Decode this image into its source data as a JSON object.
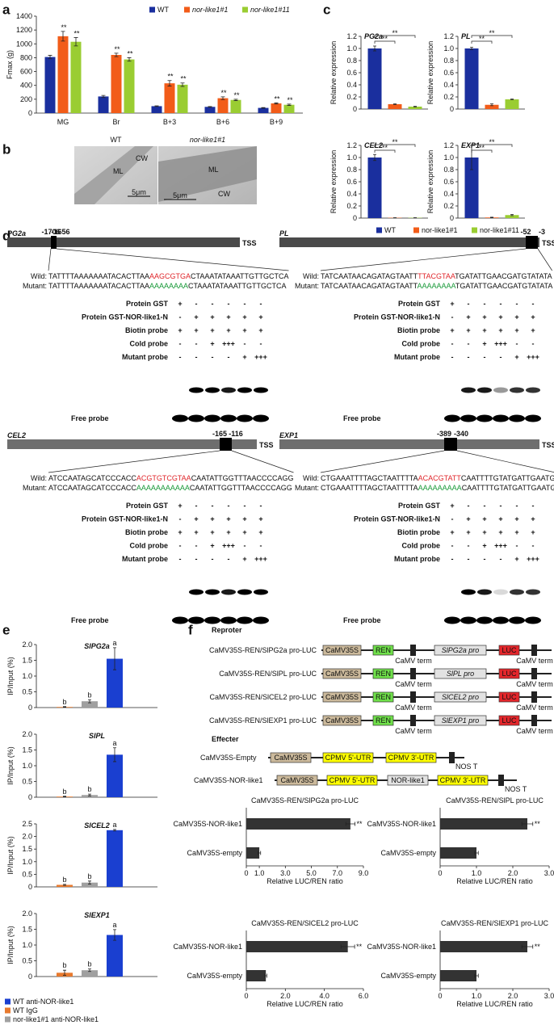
{
  "chart_data": [
    {
      "panel": "a",
      "type": "bar",
      "y_label": "Fmax (g)",
      "categories": [
        "MG",
        "Br",
        "B+3",
        "B+6",
        "B+9"
      ],
      "series": [
        {
          "name": "WT",
          "color": "#1a2f9e",
          "values": [
            810,
            240,
            100,
            90,
            75
          ],
          "errors": [
            25,
            15,
            5,
            5,
            5
          ]
        },
        {
          "name": "nor-like1#1",
          "color": "#f25c19",
          "values": [
            1110,
            840,
            430,
            215,
            140
          ],
          "errors": [
            70,
            25,
            40,
            20,
            8
          ],
          "significance": [
            "**",
            "**",
            "**",
            "**",
            "**"
          ]
        },
        {
          "name": "nor-like1#11",
          "color": "#9acd32",
          "values": [
            1030,
            775,
            410,
            190,
            120
          ],
          "errors": [
            60,
            25,
            25,
            10,
            10
          ],
          "significance": [
            "**",
            "**",
            "**",
            "**",
            "**"
          ]
        }
      ],
      "ylim": [
        0,
        1400
      ],
      "yticks": [
        0,
        200,
        400,
        600,
        800,
        1000,
        1200,
        1400
      ]
    },
    {
      "panel": "c",
      "type": "bar-panels",
      "y_label": "Relative expression",
      "ylim": [
        0,
        1.2
      ],
      "yticks": [
        0,
        0.2,
        0.4,
        0.6,
        0.8,
        {
          "value": 1,
          "label": "1.0"
        },
        1.2
      ],
      "series": [
        {
          "name": "WT",
          "color": "#1a2f9e"
        },
        {
          "name": "nor-like1#1",
          "color": "#f25c19"
        },
        {
          "name": "nor-like1#11",
          "color": "#9acd32"
        }
      ],
      "panels": [
        {
          "title": "PG2a",
          "values": [
            1.0,
            0.08,
            0.04
          ],
          "errors": [
            0.04,
            0.005,
            0.005
          ],
          "significance": [
            "**",
            "**"
          ]
        },
        {
          "title": "PL",
          "values": [
            1.0,
            0.07,
            0.16
          ],
          "errors": [
            0.02,
            0.015,
            0.005
          ],
          "significance": [
            "**",
            "**"
          ]
        },
        {
          "title": "CEL2",
          "values": [
            1.0,
            0.005,
            0.005
          ],
          "errors": [
            0.05,
            0.002,
            0.002
          ],
          "significance": [
            "**",
            "**"
          ]
        },
        {
          "title": "EXP1",
          "values": [
            1.0,
            0.01,
            0.05
          ],
          "errors": [
            0.2,
            0.005,
            0.01
          ],
          "significance": [
            "**",
            "**"
          ]
        }
      ]
    },
    {
      "panel": "e",
      "type": "bar-panels",
      "y_label": "IP/Input (%)",
      "series": [
        {
          "name": "WT anti-NOR-like1",
          "color": "#1a3fd0"
        },
        {
          "name": "WT IgG",
          "color": "#e87a2e"
        },
        {
          "name": "nor-like1#1 anti-NOR-like1",
          "color": "#a0a0a0"
        }
      ],
      "panels": [
        {
          "title": "SlPG2a",
          "ylim": [
            0,
            2
          ],
          "yticks": [
            0,
            0.5,
            {
              "value": 1,
              "label": "1.0"
            },
            1.5,
            {
              "value": 2,
              "label": "2.0"
            }
          ],
          "values": [
            1.55,
            0.02,
            0.2
          ],
          "errors": [
            0.35,
            0.01,
            0.05
          ],
          "letters": [
            "a",
            "b",
            "b"
          ]
        },
        {
          "title": "SlPL",
          "ylim": [
            0,
            2
          ],
          "yticks": [
            0,
            0.5,
            {
              "value": 1,
              "label": "1.0"
            },
            1.5,
            {
              "value": 2,
              "label": "2.0"
            }
          ],
          "values": [
            1.35,
            0.02,
            0.07
          ],
          "errors": [
            0.22,
            0.01,
            0.03
          ],
          "letters": [
            "a",
            "b",
            "b"
          ]
        },
        {
          "title": "SlCEL2",
          "ylim": [
            0,
            2.5
          ],
          "yticks": [
            0,
            0.5,
            {
              "value": 1,
              "label": "1.0"
            },
            1.5,
            {
              "value": 2,
              "label": "2.0"
            },
            2.5
          ],
          "values": [
            2.25,
            0.08,
            0.17
          ],
          "errors": [
            0.03,
            0.02,
            0.06
          ],
          "letters": [
            "a",
            "b",
            "b"
          ]
        },
        {
          "title": "SlEXP1",
          "ylim": [
            0,
            2
          ],
          "yticks": [
            0,
            0.5,
            {
              "value": 1,
              "label": "1.0"
            },
            1.5,
            {
              "value": 2,
              "label": "2.0"
            }
          ],
          "values": [
            1.32,
            0.12,
            0.2
          ],
          "errors": [
            0.17,
            0.08,
            0.04
          ],
          "letters": [
            "a",
            "b",
            "b"
          ]
        }
      ]
    },
    {
      "panel": "f",
      "type": "hbar-panels",
      "x_label": "Relative LUC/REN ratio",
      "categories": [
        "CaMV35S-NOR-like1",
        "CaMV35S-empty"
      ],
      "color": "#333333",
      "panels": [
        {
          "title": "CaMV35S-REN/SlPG2a pro-LUC",
          "values": [
            8.0,
            1.0
          ],
          "errors": [
            0.35,
            0.1
          ],
          "significance": [
            "**"
          ],
          "xlim": [
            0,
            9
          ],
          "xticks": [
            0,
            {
              "value": 1,
              "label": "1.0"
            },
            {
              "value": 3,
              "label": "3.0"
            },
            {
              "value": 5,
              "label": "5.0"
            },
            {
              "value": 7,
              "label": "7.0"
            },
            {
              "value": 9,
              "label": "9.0"
            }
          ]
        },
        {
          "title": "CaMV35S-REN/SlPL pro-LUC",
          "values": [
            2.4,
            1.0
          ],
          "errors": [
            0.15,
            0.05
          ],
          "significance": [
            "**"
          ],
          "xlim": [
            0,
            3
          ],
          "xticks": [
            0,
            {
              "value": 1,
              "label": "1.0"
            },
            {
              "value": 2,
              "label": "2.0"
            },
            {
              "value": 3,
              "label": "3.0"
            }
          ]
        },
        {
          "title": "CaMV35S-REN/SlCEL2 pro-LUC",
          "values": [
            5.2,
            1.0
          ],
          "errors": [
            0.35,
            0.05
          ],
          "significance": [
            "**"
          ],
          "xlim": [
            0,
            6
          ],
          "xticks": [
            0,
            {
              "value": 2,
              "label": "2.0"
            },
            {
              "value": 4,
              "label": "4.0"
            },
            {
              "value": 6,
              "label": "6.0"
            }
          ]
        },
        {
          "title": "CaMV35S-REN/SlEXP1 pro-LUC",
          "values": [
            2.4,
            1.0
          ],
          "errors": [
            0.15,
            0.05
          ],
          "significance": [
            "**"
          ],
          "xlim": [
            0,
            3
          ],
          "xticks": [
            0,
            {
              "value": 1,
              "label": "1.0"
            },
            {
              "value": 2,
              "label": "2.0"
            },
            {
              "value": 3,
              "label": "3.0"
            }
          ]
        }
      ]
    }
  ],
  "panel_b": {
    "label": "b",
    "images": [
      {
        "title": "WT",
        "ml": "ML",
        "cw": "CW",
        "scale": "5μm"
      },
      {
        "title": "nor-like1#1",
        "ml": "ML",
        "cw": "CW",
        "scale": "5μm"
      }
    ]
  },
  "panel_d": {
    "label": "d",
    "tss": "TSS",
    "wild": "Wild:",
    "mutant": "Mutant:",
    "free_probe": "Free probe",
    "rows": [
      {
        "label": "Protein GST",
        "lanes": [
          "+",
          "-",
          "-",
          "-",
          "-",
          "-"
        ]
      },
      {
        "label": "Protein GST-NOR-like1-N",
        "lanes": [
          "-",
          "+",
          "+",
          "+",
          "+",
          "+"
        ]
      },
      {
        "label": "Biotin probe",
        "lanes": [
          "+",
          "+",
          "+",
          "+",
          "+",
          "+"
        ]
      },
      {
        "label": "Cold probe",
        "lanes": [
          "-",
          "-",
          "+",
          "+++",
          "-",
          "-"
        ]
      },
      {
        "label": "Mutant probe",
        "lanes": [
          "-",
          "-",
          "-",
          "-",
          "+",
          "+++"
        ]
      }
    ],
    "blocks": [
      {
        "gene": "PG2a",
        "positions": [
          "-1706",
          "-1656"
        ],
        "wild_seq": [
          "TATTTTAAAAAAATACACTTAA",
          "AAGCGTGA",
          "CTAAATATAAATTGTTGCTCA"
        ],
        "mutant_seq": [
          "TATTTTAAAAAAATACACTTAA",
          "AAAAAAAA",
          "CTAAATATAAATTGTTGCTCA"
        ]
      },
      {
        "gene": "PL",
        "positions": [
          "-52",
          "-3"
        ],
        "wild_seq": [
          "TATCAATAACAGATAGTAATT",
          "TTACGTAA",
          "TGATATTGAACGATGTATATA"
        ],
        "mutant_seq": [
          "TATCAATAACAGATAGTAATT",
          "AAAAAAAA",
          "TGATATTGAACGATGTATATA"
        ]
      },
      {
        "gene": "CEL2",
        "positions": [
          "-165",
          "-116"
        ],
        "wild_seq": [
          "ATCCAATAGCATCCCACC",
          "ACGTGTCGTAA",
          "CAATATTGGTTTAACCCCAGG"
        ],
        "mutant_seq": [
          "ATCCAATAGCATCCCACC",
          "AAAAAAAAAAA",
          "CAATATTGGTTTAACCCCAGG"
        ]
      },
      {
        "gene": "EXP1",
        "positions": [
          "-389",
          "-340"
        ],
        "wild_seq": [
          "CTGAAATTTTAGCTAATTTTA",
          "ACACGTATT",
          "CAATTTTGTATGATTGAATG"
        ],
        "mutant_seq": [
          "CTGAAATTTTAGCTAATTTTA",
          "AAAAAAAAA",
          "CAATTTTGTATGATTGAATG"
        ]
      }
    ]
  },
  "panel_f": {
    "reporter_title": "Reproter",
    "camv35s": "CaMV35S",
    "ren": "REN",
    "term": "CaMV term",
    "luc": "LUC",
    "reporters": [
      {
        "label": "CaMV35S-REN/SlPG2a pro-LUC",
        "promoter": "SlPG2a pro"
      },
      {
        "label": "CaMV35S-REN/SlPL pro-LUC",
        "promoter": "SlPL pro"
      },
      {
        "label": "CaMV35S-REN/SlCEL2 pro-LUC",
        "promoter": "SlCEL2 pro"
      },
      {
        "label": "CaMV35S-REN/SlEXP1 pro-LUC",
        "promoter": "SlEXP1 pro"
      }
    ],
    "effector_title": "Effecter",
    "effectors": [
      {
        "label": "CaMV35S-Empty",
        "parts": [
          "CaMV35S",
          "CPMV 5'-UTR",
          "CPMV 3'-UTR"
        ],
        "term": "NOS T"
      },
      {
        "label": "CaMV35S-NOR-like1",
        "parts": [
          "CaMV35S",
          "CPMV 5'-UTR",
          "NOR-like1",
          "CPMV 3'-UTR"
        ],
        "term": "NOS T"
      }
    ]
  }
}
